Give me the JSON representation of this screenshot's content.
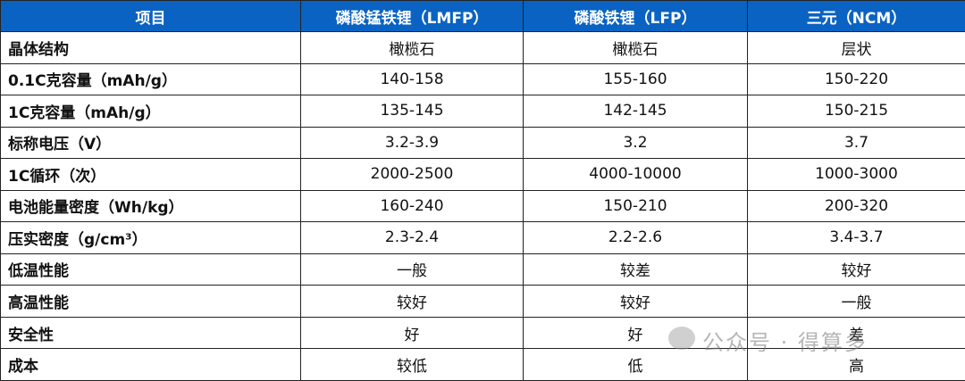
{
  "table": {
    "header": [
      "项目",
      "磷酸锰铁锂（LMFP）",
      "磷酸铁锂（LFP）",
      "三元（NCM）"
    ],
    "rows": [
      [
        "晶体结构",
        "橄榄石",
        "橄榄石",
        "层状"
      ],
      [
        "0.1C克容量（mAh/g）",
        "140-158",
        "155-160",
        "150-220"
      ],
      [
        "1C克容量（mAh/g）",
        "135-145",
        "142-145",
        "150-215"
      ],
      [
        "标称电压（V）",
        "3.2-3.9",
        "3.2",
        "3.7"
      ],
      [
        "1C循环（次）",
        "2000-2500",
        "4000-10000",
        "1000-3000"
      ],
      [
        "电池能量密度（Wh/kg）",
        "160-240",
        "150-210",
        "200-320"
      ],
      [
        "压实密度（g/cm³）",
        "2.3-2.4",
        "2.2-2.6",
        "3.4-3.7"
      ],
      [
        "低温性能",
        "一般",
        "较差",
        "较好"
      ],
      [
        "高温性能",
        "较好",
        "较好",
        "一般"
      ],
      [
        "安全性",
        "好",
        "好",
        "差"
      ],
      [
        "成本",
        "较低",
        "低",
        "高"
      ]
    ]
  },
  "watermark": "公众号 · 得算多"
}
